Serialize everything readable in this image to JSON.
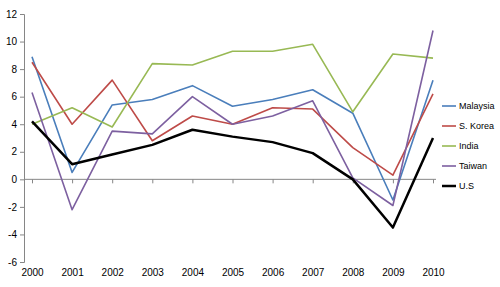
{
  "chart_data": {
    "type": "line",
    "categories": [
      "2000",
      "2001",
      "2002",
      "2003",
      "2004",
      "2005",
      "2006",
      "2007",
      "2008",
      "2009",
      "2010"
    ],
    "series": [
      {
        "name": "Malaysia",
        "color": "#4a7ebb",
        "values": [
          8.9,
          0.5,
          5.4,
          5.8,
          6.8,
          5.3,
          5.8,
          6.5,
          4.8,
          -1.5,
          7.2
        ]
      },
      {
        "name": "S. Korea",
        "color": "#be4b48",
        "values": [
          8.5,
          4.0,
          7.2,
          2.8,
          4.6,
          4.0,
          5.2,
          5.1,
          2.3,
          0.3,
          6.2
        ]
      },
      {
        "name": "India",
        "color": "#98b954",
        "values": [
          4.0,
          5.2,
          3.8,
          8.4,
          8.3,
          9.3,
          9.3,
          9.8,
          4.9,
          9.1,
          8.8
        ]
      },
      {
        "name": "Taiwan",
        "color": "#7d60a0",
        "values": [
          6.3,
          -2.2,
          3.5,
          3.3,
          6.0,
          4.0,
          4.6,
          5.7,
          0.1,
          -1.9,
          10.8
        ]
      },
      {
        "name": "U.S",
        "color": "#000000",
        "values": [
          4.2,
          1.1,
          1.8,
          2.5,
          3.6,
          3.1,
          2.7,
          1.9,
          0.0,
          -3.5,
          3.0
        ]
      }
    ],
    "ylim": [
      -6,
      12
    ],
    "yticks": [
      -6,
      -4,
      -2,
      0,
      2,
      4,
      6,
      8,
      10,
      12
    ],
    "grid": false,
    "legend": "right"
  }
}
